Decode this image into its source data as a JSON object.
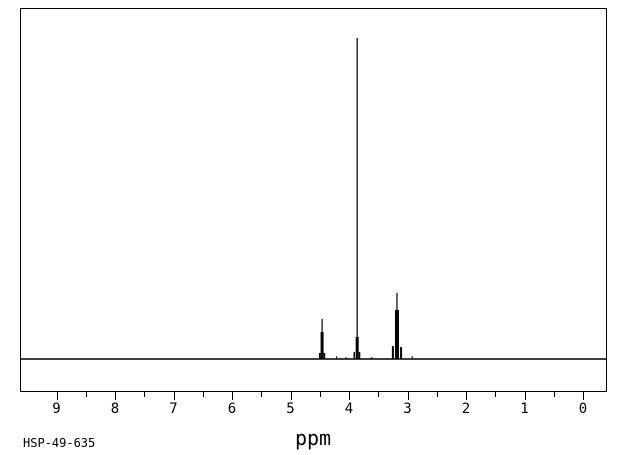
{
  "page": {
    "background_color": "#ffffff",
    "ink_color": "#000000"
  },
  "footer": {
    "sample_id": "HSP-49-635"
  },
  "chart_data": {
    "type": "line",
    "subtype": "1H-NMR spectrum",
    "title": "",
    "xlabel": "ppm",
    "ylabel": "",
    "x_axis": {
      "direction": "reversed",
      "range_left_ppm": 9.62,
      "range_right_ppm": -0.41,
      "tick_labels": [
        "9",
        "8",
        "7",
        "6",
        "5",
        "4",
        "3",
        "2",
        "1",
        "0"
      ],
      "tick_values": [
        9,
        8,
        7,
        6,
        5,
        4,
        3,
        2,
        1,
        0
      ],
      "minor_tick_values": [
        8.5,
        7.5,
        6.5,
        5.5,
        4.5,
        3.5,
        2.5,
        1.5,
        0.5
      ]
    },
    "y_axis": {
      "visible": false
    },
    "grid": false,
    "legend": false,
    "peaks_summary": [
      {
        "ppm": 4.46,
        "relative_intensity": 0.125
      },
      {
        "ppm": 3.86,
        "relative_intensity": 1.0
      },
      {
        "ppm": 3.18,
        "relative_intensity": 0.206
      }
    ],
    "components": [
      {
        "ppm": 4.5,
        "rel": 0.019,
        "w": 1.5
      },
      {
        "ppm": 4.46,
        "rel": 0.125,
        "w": 1.2
      },
      {
        "ppm": 4.46,
        "rel": 0.084,
        "w": 3
      },
      {
        "ppm": 4.42,
        "rel": 0.019,
        "w": 1.5
      },
      {
        "ppm": 4.21,
        "rel": 0.009,
        "w": 1
      },
      {
        "ppm": 4.05,
        "rel": 0.006,
        "w": 1
      },
      {
        "ppm": 3.91,
        "rel": 0.022,
        "w": 1.5
      },
      {
        "ppm": 3.86,
        "rel": 1.0,
        "w": 1.2
      },
      {
        "ppm": 3.86,
        "rel": 0.069,
        "w": 3
      },
      {
        "ppm": 3.82,
        "rel": 0.022,
        "w": 1.5
      },
      {
        "ppm": 3.61,
        "rel": 0.006,
        "w": 1
      },
      {
        "ppm": 3.25,
        "rel": 0.04,
        "w": 2
      },
      {
        "ppm": 3.18,
        "rel": 0.206,
        "w": 1.2
      },
      {
        "ppm": 3.18,
        "rel": 0.153,
        "w": 4
      },
      {
        "ppm": 3.11,
        "rel": 0.037,
        "w": 2
      },
      {
        "ppm": 2.92,
        "rel": 0.009,
        "w": 1
      }
    ]
  }
}
